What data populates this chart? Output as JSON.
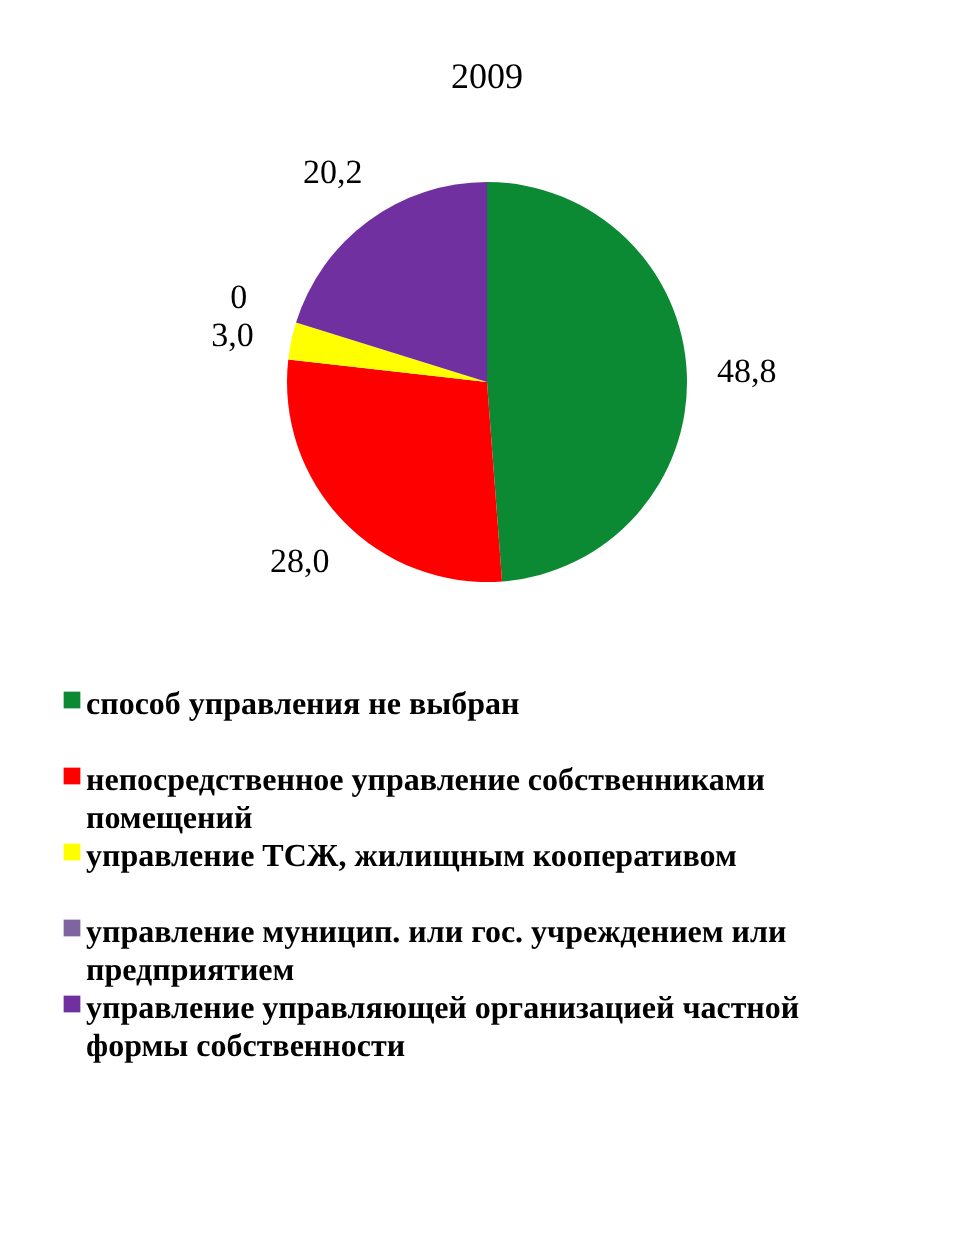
{
  "chart_data": {
    "type": "pie",
    "title": "2009",
    "categories": [
      "способ управления не выбран",
      "непосредственное управление собственниками помещений",
      "управление ТСЖ, жилищным кооперативом",
      "управление муницип. или гос. учреждением или предприятием",
      "управление управляющей организацией частной формы собственности"
    ],
    "values": [
      48.8,
      28.0,
      3.0,
      0,
      20.2
    ],
    "colors": [
      "#0b8a33",
      "#ff0000",
      "#ffff00",
      "#8064a2",
      "#7030a0"
    ],
    "value_labels": [
      "48,8",
      "28,0",
      "3,0",
      "0",
      "20,2"
    ],
    "legend": "bottom"
  }
}
